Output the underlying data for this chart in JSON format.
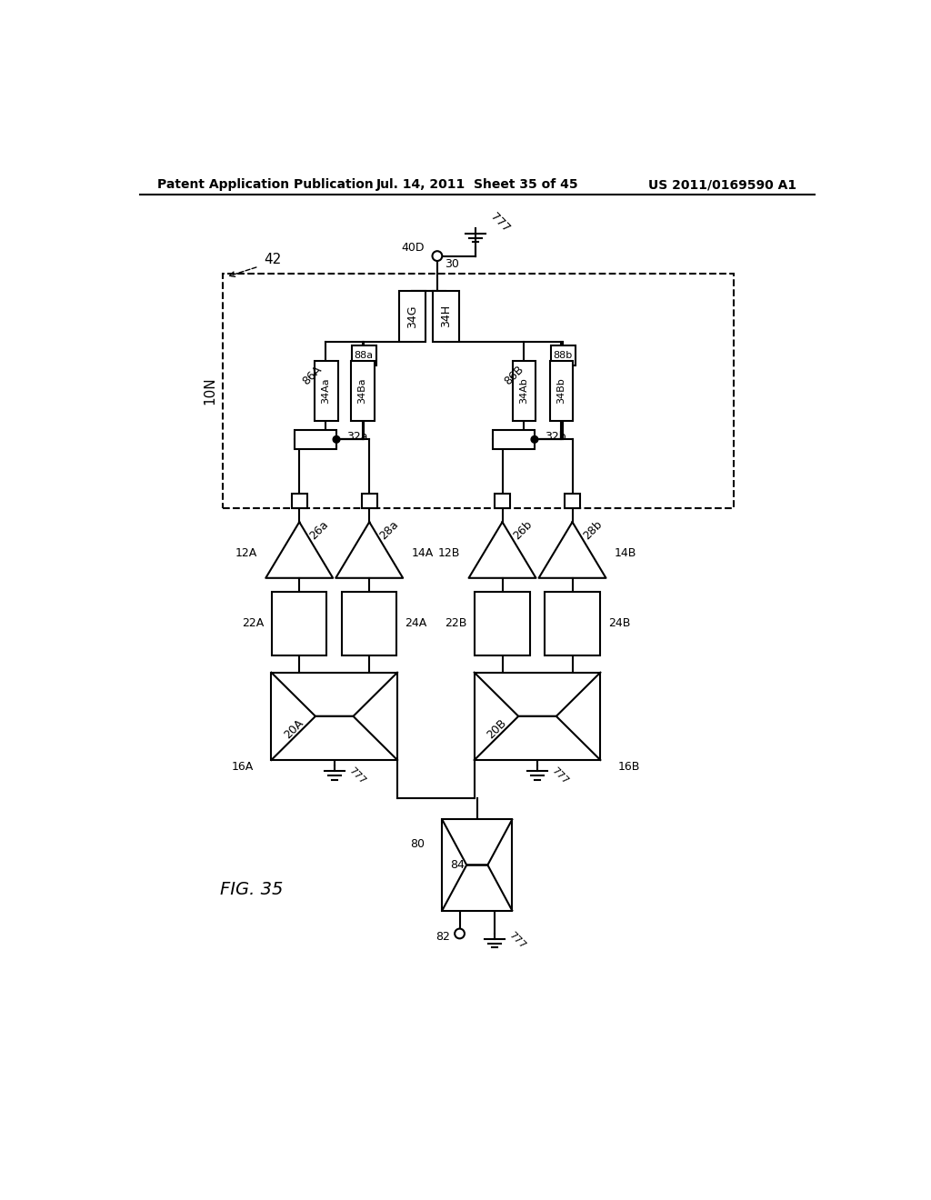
{
  "title_left": "Patent Application Publication",
  "title_mid": "Jul. 14, 2011  Sheet 35 of 45",
  "title_right": "US 2011/0169590 A1",
  "bg_color": "#ffffff"
}
